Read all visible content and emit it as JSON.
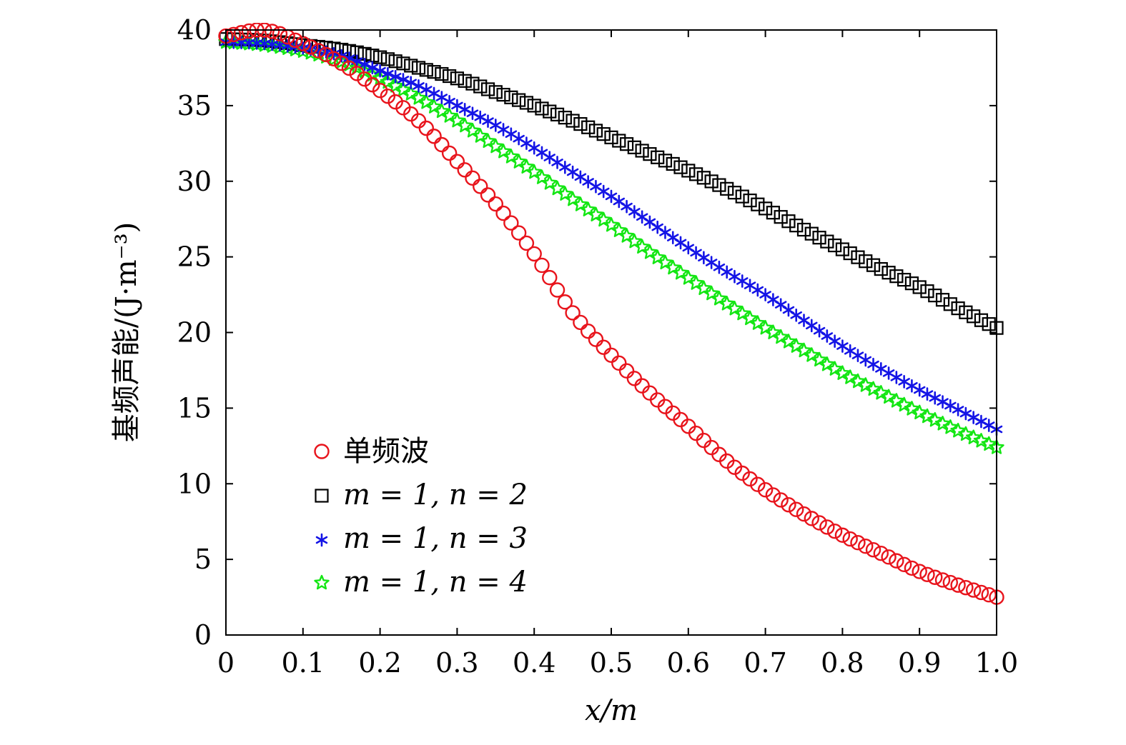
{
  "chart_data": {
    "type": "scatter",
    "title": "",
    "xlabel": "x/m",
    "ylabel": "基频声能/(J·m⁻³)",
    "xlim": [
      0,
      1.0
    ],
    "ylim": [
      0,
      40
    ],
    "x_ticks": [
      "0",
      "0.1",
      "0.2",
      "0.3",
      "0.4",
      "0.5",
      "0.6",
      "0.7",
      "0.8",
      "0.9",
      "1.0"
    ],
    "y_ticks": [
      "0",
      "5",
      "10",
      "15",
      "20",
      "25",
      "30",
      "35",
      "40"
    ],
    "grid": false,
    "legend_position": "lower-left",
    "points_per_series": 101,
    "series": [
      {
        "name": "单频波",
        "marker": "circle",
        "color": "#e8141c",
        "keypoints": [
          [
            0.0,
            39.6
          ],
          [
            0.05,
            40.0
          ],
          [
            0.1,
            39.1
          ],
          [
            0.15,
            37.8
          ],
          [
            0.2,
            36.0
          ],
          [
            0.25,
            34.0
          ],
          [
            0.3,
            31.3
          ],
          [
            0.35,
            28.5
          ],
          [
            0.4,
            25.2
          ],
          [
            0.45,
            21.3
          ],
          [
            0.5,
            18.5
          ],
          [
            0.55,
            16.0
          ],
          [
            0.6,
            13.8
          ],
          [
            0.65,
            11.5
          ],
          [
            0.7,
            9.6
          ],
          [
            0.75,
            8.0
          ],
          [
            0.8,
            6.6
          ],
          [
            0.85,
            5.4
          ],
          [
            0.9,
            4.2
          ],
          [
            0.95,
            3.3
          ],
          [
            1.0,
            2.5
          ]
        ]
      },
      {
        "name": "m = 1, n = 2",
        "marker": "square",
        "color": "#000000",
        "keypoints": [
          [
            0.0,
            39.4
          ],
          [
            0.05,
            39.3
          ],
          [
            0.1,
            39.0
          ],
          [
            0.15,
            38.7
          ],
          [
            0.2,
            38.2
          ],
          [
            0.25,
            37.5
          ],
          [
            0.3,
            36.8
          ],
          [
            0.35,
            35.9
          ],
          [
            0.4,
            35.0
          ],
          [
            0.45,
            34.0
          ],
          [
            0.5,
            32.9
          ],
          [
            0.55,
            31.8
          ],
          [
            0.6,
            30.7
          ],
          [
            0.65,
            29.5
          ],
          [
            0.7,
            28.2
          ],
          [
            0.75,
            26.8
          ],
          [
            0.8,
            25.5
          ],
          [
            0.85,
            24.2
          ],
          [
            0.9,
            23.0
          ],
          [
            0.95,
            21.6
          ],
          [
            1.0,
            20.3
          ]
        ]
      },
      {
        "name": "m = 1, n = 3",
        "marker": "asterisk",
        "color": "#1414e6",
        "keypoints": [
          [
            0.0,
            39.2
          ],
          [
            0.05,
            39.1
          ],
          [
            0.1,
            38.8
          ],
          [
            0.15,
            38.3
          ],
          [
            0.2,
            37.3
          ],
          [
            0.25,
            36.3
          ],
          [
            0.3,
            35.0
          ],
          [
            0.35,
            33.7
          ],
          [
            0.4,
            32.2
          ],
          [
            0.45,
            30.6
          ],
          [
            0.5,
            29.0
          ],
          [
            0.55,
            27.3
          ],
          [
            0.6,
            25.6
          ],
          [
            0.65,
            24.0
          ],
          [
            0.7,
            22.5
          ],
          [
            0.75,
            20.8
          ],
          [
            0.8,
            19.1
          ],
          [
            0.85,
            17.6
          ],
          [
            0.9,
            16.2
          ],
          [
            0.95,
            14.9
          ],
          [
            1.0,
            13.6
          ]
        ]
      },
      {
        "name": "m = 1, n = 4",
        "marker": "star",
        "color": "#14e614",
        "keypoints": [
          [
            0.0,
            39.2
          ],
          [
            0.05,
            39.0
          ],
          [
            0.1,
            38.6
          ],
          [
            0.15,
            37.9
          ],
          [
            0.2,
            36.8
          ],
          [
            0.25,
            35.5
          ],
          [
            0.3,
            34.0
          ],
          [
            0.35,
            32.3
          ],
          [
            0.4,
            30.6
          ],
          [
            0.45,
            28.8
          ],
          [
            0.5,
            27.1
          ],
          [
            0.55,
            25.3
          ],
          [
            0.6,
            23.6
          ],
          [
            0.65,
            21.9
          ],
          [
            0.7,
            20.3
          ],
          [
            0.75,
            18.8
          ],
          [
            0.8,
            17.3
          ],
          [
            0.85,
            16.0
          ],
          [
            0.9,
            14.7
          ],
          [
            0.95,
            13.5
          ],
          [
            1.0,
            12.4
          ]
        ]
      }
    ]
  }
}
